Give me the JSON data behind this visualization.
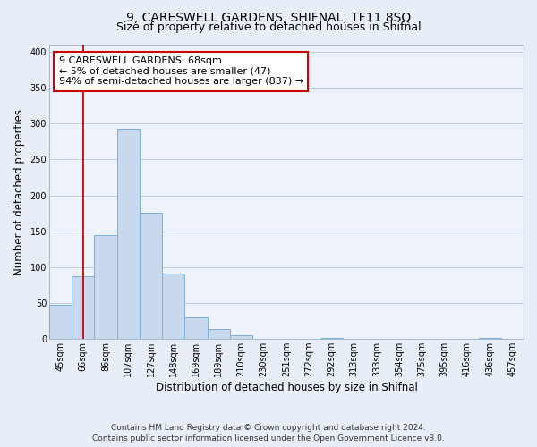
{
  "title": "9, CARESWELL GARDENS, SHIFNAL, TF11 8SQ",
  "subtitle": "Size of property relative to detached houses in Shifnal",
  "xlabel": "Distribution of detached houses by size in Shifnal",
  "ylabel": "Number of detached properties",
  "bar_labels": [
    "45sqm",
    "66sqm",
    "86sqm",
    "107sqm",
    "127sqm",
    "148sqm",
    "169sqm",
    "189sqm",
    "210sqm",
    "230sqm",
    "251sqm",
    "272sqm",
    "292sqm",
    "313sqm",
    "333sqm",
    "354sqm",
    "375sqm",
    "395sqm",
    "416sqm",
    "436sqm",
    "457sqm"
  ],
  "bar_values": [
    47,
    87,
    145,
    293,
    176,
    91,
    30,
    14,
    5,
    0,
    0,
    0,
    1,
    0,
    0,
    0,
    0,
    0,
    0,
    1,
    0
  ],
  "bar_color": "#c8d8ee",
  "bar_edge_color": "#7bafd4",
  "vline_x": 1,
  "vline_color": "#cc0000",
  "annotation_text": "9 CARESWELL GARDENS: 68sqm\n← 5% of detached houses are smaller (47)\n94% of semi-detached houses are larger (837) →",
  "annotation_box_color": "#ffffff",
  "annotation_box_edge": "#cc0000",
  "ylim": [
    0,
    410
  ],
  "yticks": [
    0,
    50,
    100,
    150,
    200,
    250,
    300,
    350,
    400
  ],
  "footer_line1": "Contains HM Land Registry data © Crown copyright and database right 2024.",
  "footer_line2": "Contains public sector information licensed under the Open Government Licence v3.0.",
  "bg_color": "#e8eef8",
  "plot_bg_color": "#eef2fa",
  "title_fontsize": 10,
  "subtitle_fontsize": 9,
  "xlabel_fontsize": 8.5,
  "ylabel_fontsize": 8.5,
  "footer_fontsize": 6.5,
  "tick_fontsize": 7,
  "annot_fontsize": 8
}
